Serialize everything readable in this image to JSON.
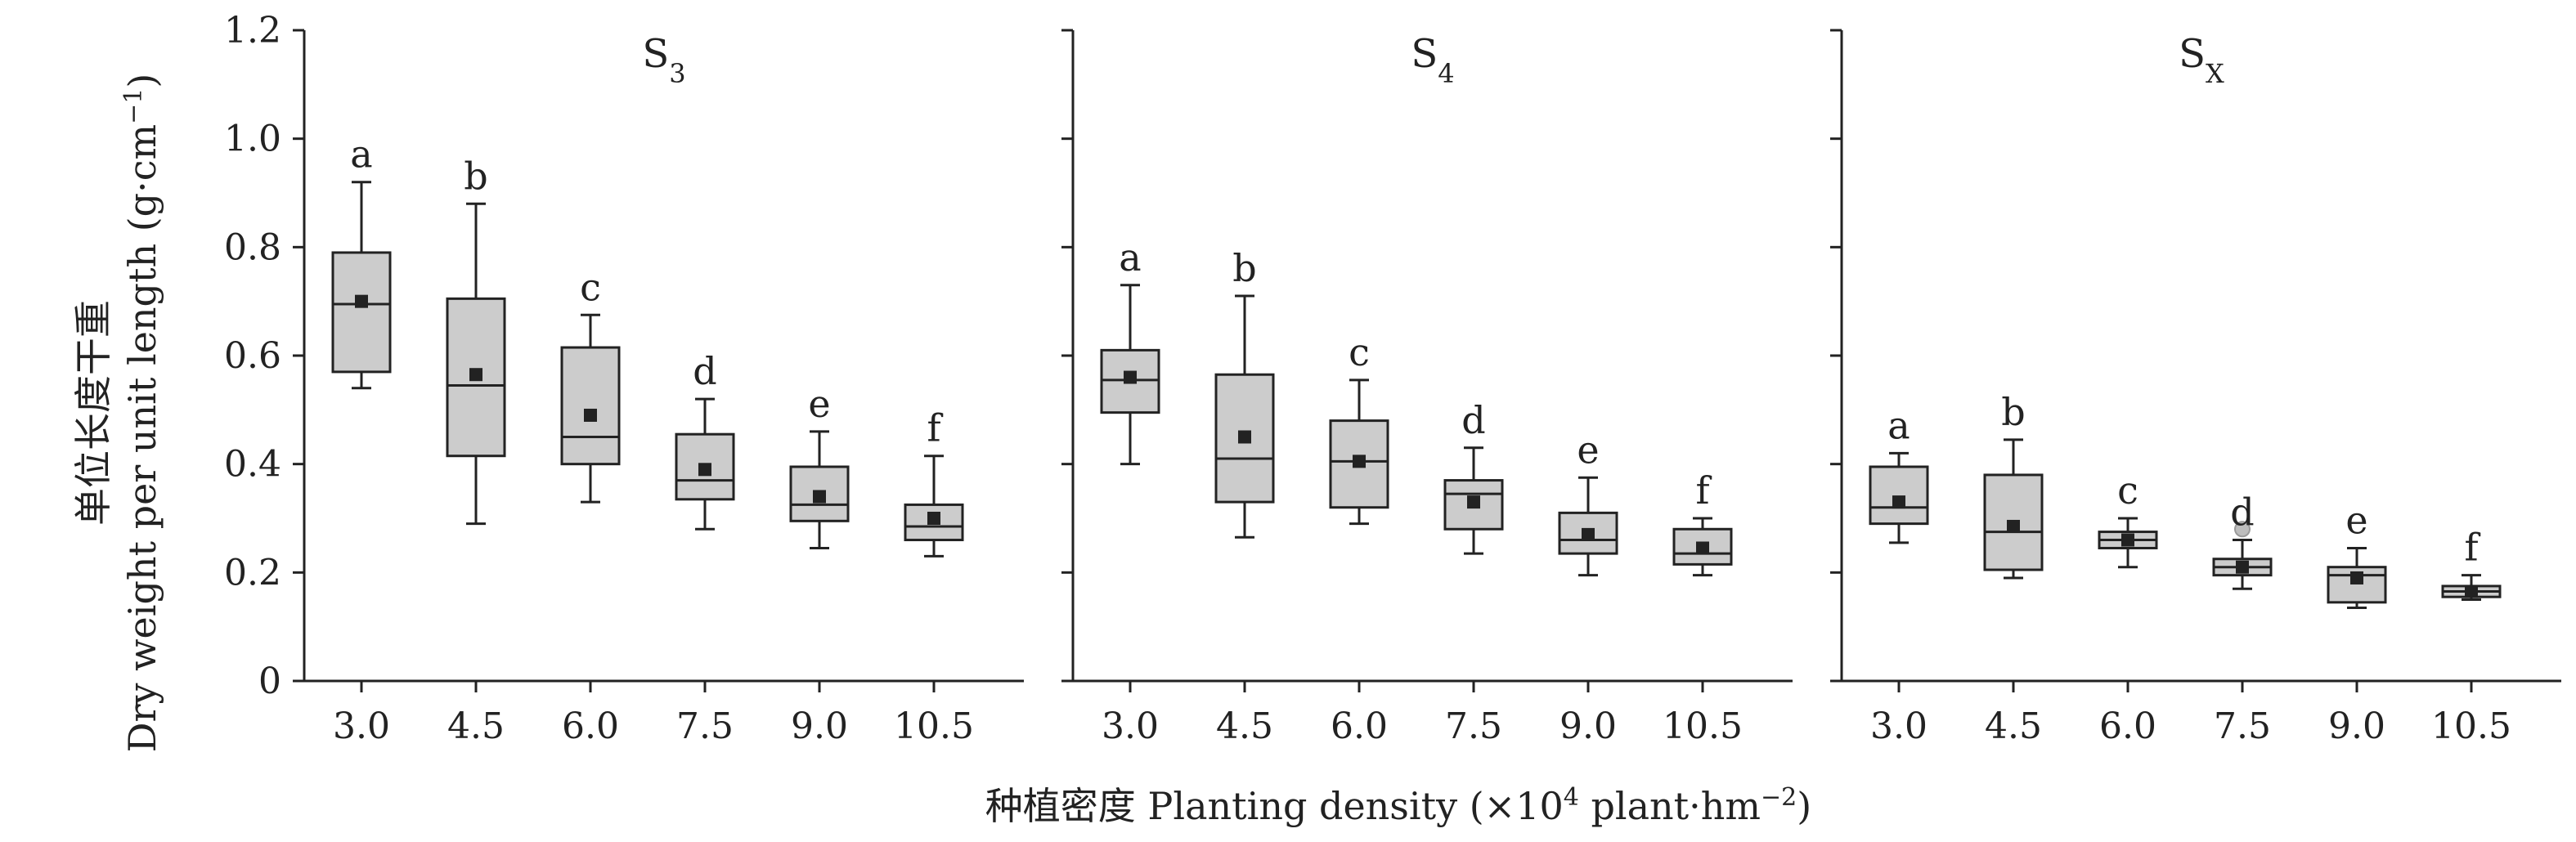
{
  "chart_data": {
    "type": "box",
    "ylabel_cn": "单位长度干重",
    "ylabel_en": "Dry weight per unit length (g·cm",
    "ylabel_sup": "−1",
    "ylabel_close": ")",
    "xlabel_main": "种植密度 Planting density (×10",
    "xlabel_sup1": "4",
    "xlabel_mid": " plant·hm",
    "xlabel_sup2": "−2",
    "xlabel_close": ")",
    "ylim": [
      0,
      1.2
    ],
    "yticks": [
      "0",
      "0.2",
      "0.4",
      "0.6",
      "0.8",
      "1.0",
      "1.2"
    ],
    "categories": [
      "3.0",
      "4.5",
      "6.0",
      "7.5",
      "9.0",
      "10.5"
    ],
    "panels": [
      {
        "title_main": "S",
        "title_sub": "3",
        "boxes": [
          {
            "min": 0.54,
            "q1": 0.57,
            "median": 0.695,
            "q3": 0.79,
            "max": 0.92,
            "mean": 0.7,
            "letter": "a"
          },
          {
            "min": 0.29,
            "q1": 0.415,
            "median": 0.545,
            "q3": 0.705,
            "max": 0.88,
            "mean": 0.565,
            "letter": "b"
          },
          {
            "min": 0.33,
            "q1": 0.4,
            "median": 0.45,
            "q3": 0.615,
            "max": 0.675,
            "mean": 0.49,
            "letter": "c"
          },
          {
            "min": 0.28,
            "q1": 0.335,
            "median": 0.37,
            "q3": 0.455,
            "max": 0.52,
            "mean": 0.39,
            "letter": "d"
          },
          {
            "min": 0.245,
            "q1": 0.295,
            "median": 0.325,
            "q3": 0.395,
            "max": 0.46,
            "mean": 0.34,
            "letter": "e"
          },
          {
            "min": 0.23,
            "q1": 0.26,
            "median": 0.285,
            "q3": 0.325,
            "max": 0.415,
            "mean": 0.3,
            "letter": "f"
          }
        ]
      },
      {
        "title_main": "S",
        "title_sub": "4",
        "boxes": [
          {
            "min": 0.4,
            "q1": 0.495,
            "median": 0.555,
            "q3": 0.61,
            "max": 0.73,
            "mean": 0.56,
            "letter": "a"
          },
          {
            "min": 0.265,
            "q1": 0.33,
            "median": 0.41,
            "q3": 0.565,
            "max": 0.71,
            "mean": 0.45,
            "letter": "b"
          },
          {
            "min": 0.29,
            "q1": 0.32,
            "median": 0.405,
            "q3": 0.48,
            "max": 0.555,
            "mean": 0.405,
            "letter": "c"
          },
          {
            "min": 0.235,
            "q1": 0.28,
            "median": 0.345,
            "q3": 0.37,
            "max": 0.43,
            "mean": 0.33,
            "letter": "d"
          },
          {
            "min": 0.195,
            "q1": 0.235,
            "median": 0.26,
            "q3": 0.31,
            "max": 0.375,
            "mean": 0.27,
            "letter": "e"
          },
          {
            "min": 0.195,
            "q1": 0.215,
            "median": 0.235,
            "q3": 0.28,
            "max": 0.3,
            "mean": 0.245,
            "letter": "f"
          }
        ]
      },
      {
        "title_main": "S",
        "title_sub": "X",
        "boxes": [
          {
            "min": 0.255,
            "q1": 0.29,
            "median": 0.32,
            "q3": 0.395,
            "max": 0.42,
            "mean": 0.33,
            "letter": "a"
          },
          {
            "min": 0.19,
            "q1": 0.205,
            "median": 0.275,
            "q3": 0.38,
            "max": 0.445,
            "mean": 0.285,
            "letter": "b"
          },
          {
            "min": 0.21,
            "q1": 0.245,
            "median": 0.26,
            "q3": 0.275,
            "max": 0.3,
            "mean": 0.26,
            "letter": "c"
          },
          {
            "min": 0.17,
            "q1": 0.195,
            "median": 0.21,
            "q3": 0.225,
            "max": 0.26,
            "mean": 0.21,
            "letter": "d",
            "outliers": [
              0.28
            ]
          },
          {
            "min": 0.135,
            "q1": 0.145,
            "median": 0.195,
            "q3": 0.21,
            "max": 0.245,
            "mean": 0.19,
            "letter": "e"
          },
          {
            "min": 0.15,
            "q1": 0.155,
            "median": 0.165,
            "q3": 0.175,
            "max": 0.195,
            "mean": 0.165,
            "letter": "f"
          }
        ]
      }
    ]
  }
}
